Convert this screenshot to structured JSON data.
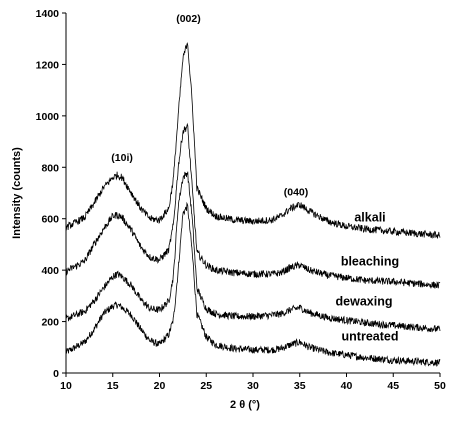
{
  "chart_data": {
    "type": "line",
    "xlabel": "2 θ (°)",
    "ylabel": "Intensity (counts)",
    "xlim": [
      10,
      50
    ],
    "ylim": [
      0,
      1400
    ],
    "x_ticks": [
      10,
      15,
      20,
      25,
      30,
      35,
      40,
      45,
      50
    ],
    "y_ticks": [
      0,
      200,
      400,
      600,
      800,
      1000,
      1200,
      1400
    ],
    "grid": false,
    "line_color": "#000000",
    "series": [
      {
        "name": "untreated",
        "x": [
          10,
          12,
          13,
          14,
          15,
          15.5,
          16,
          17,
          18,
          19,
          20,
          21,
          21.5,
          22,
          22.5,
          23,
          23.5,
          24,
          25,
          26,
          28,
          30,
          32,
          33,
          34,
          35,
          36,
          38,
          40,
          42,
          45,
          50
        ],
        "y": [
          80,
          120,
          170,
          230,
          260,
          265,
          255,
          225,
          170,
          125,
          110,
          150,
          210,
          400,
          620,
          650,
          470,
          230,
          140,
          110,
          95,
          90,
          90,
          95,
          110,
          120,
          100,
          80,
          70,
          60,
          50,
          40
        ]
      },
      {
        "name": "dewaxing",
        "x": [
          10,
          12,
          13,
          14,
          15,
          15.5,
          16,
          17,
          18,
          19,
          20,
          21,
          21.5,
          22,
          22.5,
          23,
          23.5,
          24,
          25,
          26,
          28,
          30,
          32,
          33,
          34,
          35,
          36,
          38,
          40,
          42,
          45,
          50
        ],
        "y": [
          210,
          240,
          280,
          330,
          375,
          385,
          375,
          340,
          285,
          250,
          245,
          280,
          380,
          650,
          760,
          780,
          600,
          330,
          250,
          230,
          220,
          220,
          225,
          230,
          245,
          255,
          235,
          215,
          205,
          195,
          185,
          170
        ]
      },
      {
        "name": "bleaching",
        "x": [
          10,
          12,
          13,
          14,
          15,
          15.5,
          16,
          17,
          18,
          19,
          20,
          21,
          21.5,
          22,
          22.5,
          23,
          23.5,
          24,
          25,
          26,
          28,
          30,
          32,
          33,
          34,
          35,
          36,
          38,
          40,
          42,
          45,
          50
        ],
        "y": [
          395,
          435,
          500,
          560,
          610,
          615,
          605,
          555,
          490,
          450,
          440,
          480,
          580,
          800,
          940,
          960,
          720,
          470,
          420,
          400,
          390,
          385,
          385,
          390,
          410,
          420,
          400,
          380,
          370,
          360,
          355,
          340
        ]
      },
      {
        "name": "alkali",
        "x": [
          10,
          12,
          13,
          14,
          15,
          15.5,
          16,
          17,
          18,
          19,
          20,
          21,
          21.5,
          22,
          22.5,
          23,
          23.5,
          24,
          25,
          26,
          28,
          30,
          32,
          33,
          34,
          35,
          36,
          38,
          40,
          42,
          45,
          50
        ],
        "y": [
          565,
          605,
          660,
          720,
          760,
          770,
          760,
          700,
          640,
          600,
          595,
          640,
          760,
          1000,
          1220,
          1290,
          1050,
          720,
          640,
          610,
          595,
          590,
          595,
          610,
          640,
          655,
          630,
          590,
          570,
          560,
          550,
          535
        ]
      }
    ],
    "annotations": [
      {
        "text": "(10i)",
        "x": 16,
        "y": 825
      },
      {
        "text": "(002)",
        "x": 23.1,
        "y": 1365
      },
      {
        "text": "(040)",
        "x": 34.6,
        "y": 690
      }
    ]
  }
}
